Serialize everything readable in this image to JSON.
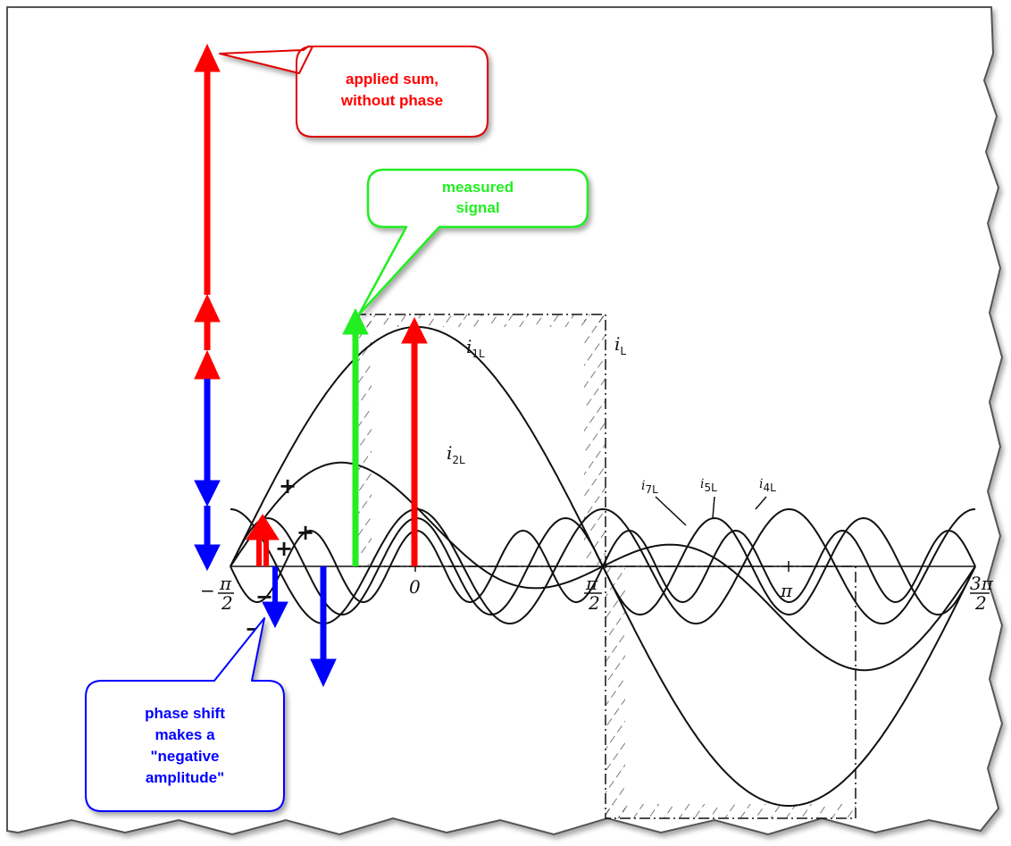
{
  "callouts": {
    "red": [
      "applied sum,",
      "without phase"
    ],
    "green": [
      "measured",
      "signal"
    ],
    "blue": [
      "phase shift",
      "makes a",
      "\"negative",
      "amplitude\""
    ]
  },
  "axis_labels": {
    "minus_pi_over_2": {
      "sign": "−",
      "num": "π",
      "den": "2"
    },
    "zero": "0",
    "pi_over_2": {
      "num": "π",
      "den": "2"
    },
    "pi": "π",
    "three_pi_over_2": {
      "num": "3π",
      "den": "2"
    }
  },
  "curve_labels": {
    "i1L": {
      "base": "i",
      "sub": "1L"
    },
    "iL": {
      "base": "i",
      "sub": "L"
    },
    "i2L": {
      "base": "i",
      "sub": "2L"
    },
    "i7L": {
      "base": "i",
      "sub": "7L"
    },
    "i5L": {
      "base": "i",
      "sub": "5L"
    },
    "i4L": {
      "base": "i",
      "sub": "4L"
    }
  },
  "signs": {
    "plus": "+",
    "minus": "−"
  },
  "colors": {
    "red": "#ff0000",
    "green": "#22ee22",
    "blue": "#0000ff",
    "ink": "#111111"
  }
}
